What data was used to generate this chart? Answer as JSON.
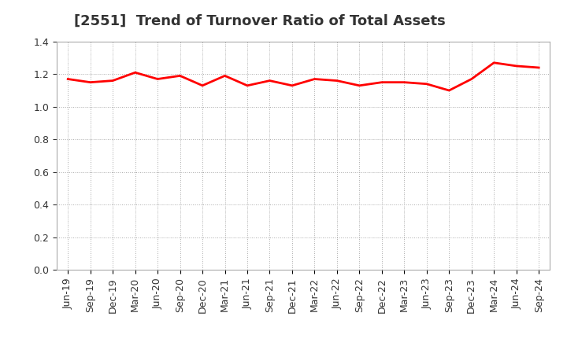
{
  "title": "[2551]  Trend of Turnover Ratio of Total Assets",
  "labels": [
    "Jun-19",
    "Sep-19",
    "Dec-19",
    "Mar-20",
    "Jun-20",
    "Sep-20",
    "Dec-20",
    "Mar-21",
    "Jun-21",
    "Sep-21",
    "Dec-21",
    "Mar-22",
    "Jun-22",
    "Sep-22",
    "Dec-22",
    "Mar-23",
    "Jun-23",
    "Sep-23",
    "Dec-23",
    "Mar-24",
    "Jun-24",
    "Sep-24"
  ],
  "values": [
    1.17,
    1.15,
    1.16,
    1.21,
    1.17,
    1.19,
    1.13,
    1.19,
    1.13,
    1.16,
    1.13,
    1.17,
    1.16,
    1.13,
    1.15,
    1.15,
    1.14,
    1.1,
    1.17,
    1.27,
    1.25,
    1.24
  ],
  "line_color": "#ff0000",
  "line_width": 2.0,
  "ylim": [
    0.0,
    1.4
  ],
  "yticks": [
    0.0,
    0.2,
    0.4,
    0.6,
    0.8,
    1.0,
    1.2,
    1.4
  ],
  "background_color": "#ffffff",
  "grid_color": "#aaaaaa",
  "title_fontsize": 13,
  "tick_fontsize": 9,
  "title_color": "#333333"
}
